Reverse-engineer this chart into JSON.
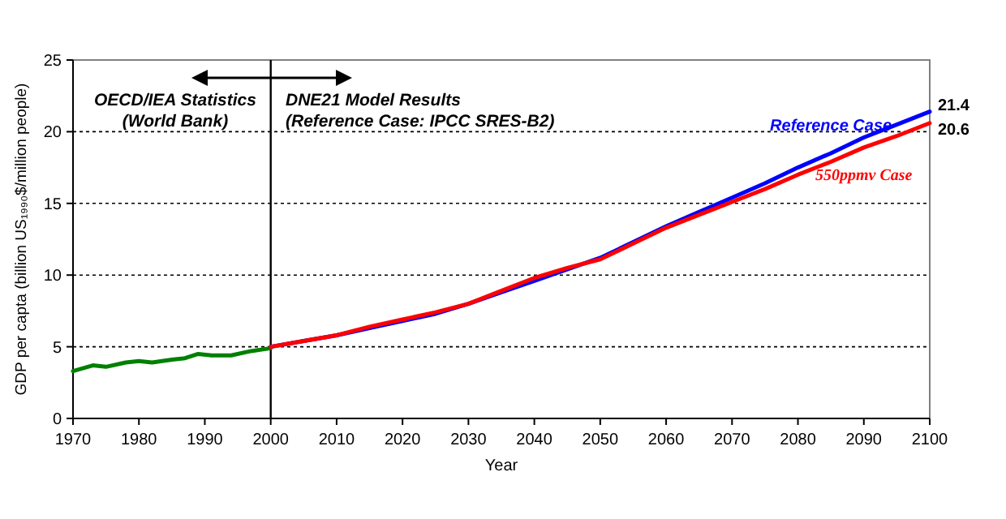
{
  "chart_data": {
    "type": "line",
    "xlabel": "Year",
    "ylabel": "GDP per capta (billion US₁₉₉₀$/million people)",
    "xlim": [
      1970,
      2100
    ],
    "xticks": [
      1970,
      1980,
      1990,
      2000,
      2010,
      2020,
      2030,
      2040,
      2050,
      2060,
      2070,
      2080,
      2090,
      2100
    ],
    "ylim": [
      0,
      25
    ],
    "yticks": [
      0,
      5,
      10,
      15,
      20,
      25
    ],
    "grid": "y",
    "line_style": "solid",
    "series": [
      {
        "color": "#008000",
        "x": [
          1970,
          1973,
          1975,
          1978,
          1980,
          1982,
          1985,
          1987,
          1989,
          1991,
          1994,
          1997,
          2000
        ],
        "values": [
          3.3,
          3.7,
          3.6,
          3.9,
          4.0,
          3.9,
          4.1,
          4.2,
          4.5,
          4.4,
          4.4,
          4.7,
          4.9
        ]
      },
      {
        "name": "Reference Case",
        "color": "#0000ff",
        "x": [
          2000,
          2005,
          2010,
          2015,
          2020,
          2025,
          2030,
          2035,
          2040,
          2045,
          2050,
          2055,
          2060,
          2065,
          2070,
          2075,
          2080,
          2085,
          2090,
          2095,
          2100
        ],
        "values": [
          5.0,
          5.4,
          5.8,
          6.3,
          6.8,
          7.3,
          8.0,
          8.8,
          9.6,
          10.4,
          11.2,
          12.3,
          13.4,
          14.4,
          15.4,
          16.4,
          17.5,
          18.5,
          19.6,
          20.5,
          21.4
        ],
        "value_labels": [
          null,
          null,
          null,
          null,
          null,
          null,
          null,
          null,
          null,
          null,
          null,
          null,
          null,
          null,
          null,
          null,
          null,
          null,
          null,
          null,
          "21.4"
        ]
      },
      {
        "name": "550ppmv Case",
        "color": "#ff0000",
        "x": [
          2000,
          2005,
          2010,
          2015,
          2020,
          2025,
          2030,
          2035,
          2040,
          2045,
          2050,
          2055,
          2060,
          2065,
          2070,
          2075,
          2080,
          2085,
          2090,
          2095,
          2100
        ],
        "values": [
          5.0,
          5.4,
          5.8,
          6.4,
          6.9,
          7.4,
          8.0,
          8.9,
          9.8,
          10.5,
          11.1,
          12.2,
          13.3,
          14.2,
          15.1,
          16.0,
          17.0,
          17.9,
          18.9,
          19.7,
          20.6
        ],
        "value_labels": [
          null,
          null,
          null,
          null,
          null,
          null,
          null,
          null,
          null,
          null,
          null,
          null,
          null,
          null,
          null,
          null,
          null,
          null,
          null,
          null,
          "20.6"
        ]
      }
    ],
    "ref_lines": [
      {
        "axis": "x",
        "value": 2000,
        "color": "#000000"
      }
    ],
    "annotations": [
      "OECD/IEA Statistics\n(World Bank)",
      "DNE21 Model Results\n(Reference Case: IPCC SRES-B2)"
    ]
  }
}
